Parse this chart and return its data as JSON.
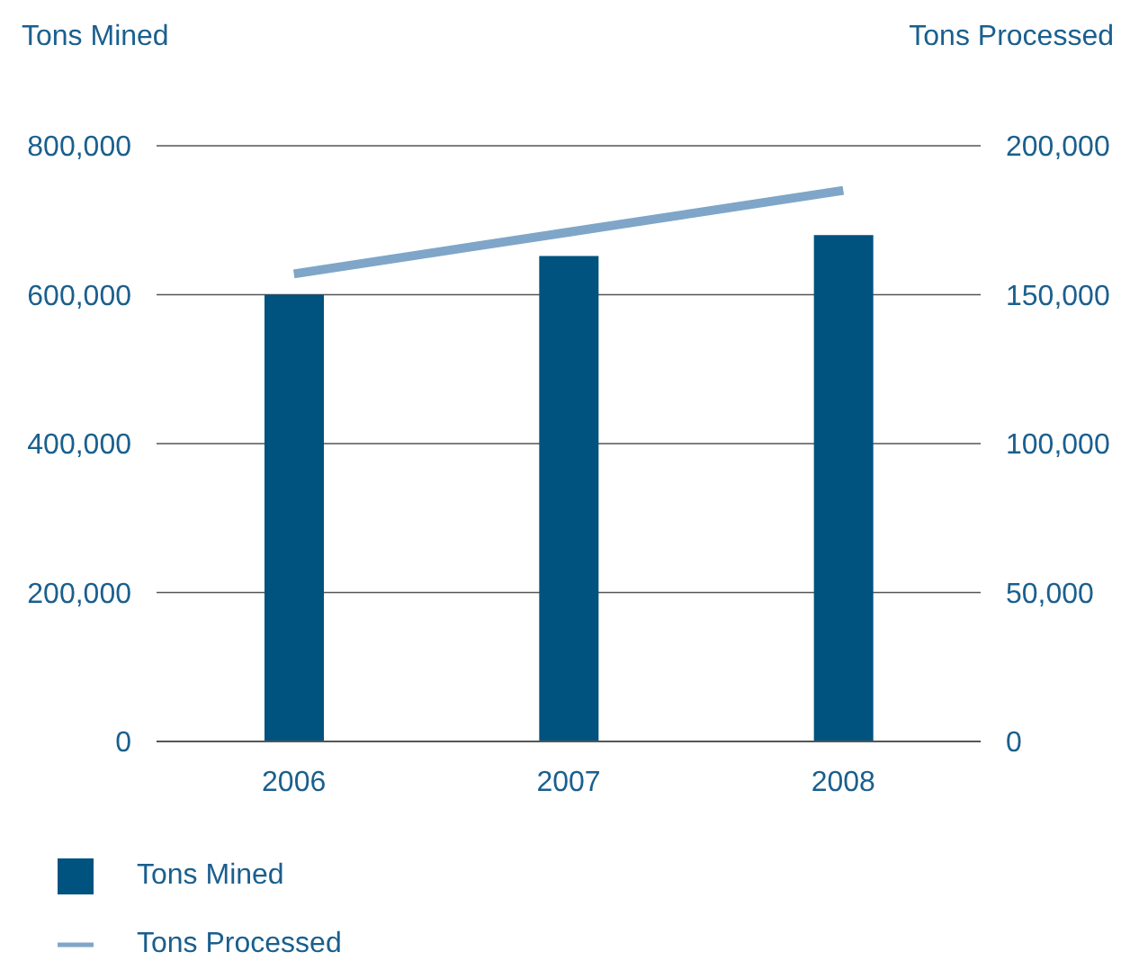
{
  "chart_data": {
    "type": "bar",
    "ylabel": "Tons Mined",
    "y2label": "Tons Processed",
    "categories": [
      "2006",
      "2007",
      "2008"
    ],
    "series": [
      {
        "name": "Tons Mined",
        "color": "#00527f",
        "values": [
          600000,
          652000,
          680000
        ]
      },
      {
        "name": "Tons Processed",
        "type": "line",
        "axis": "y2",
        "color": "#7fa6c8",
        "values": [
          157000,
          171000,
          185000
        ]
      }
    ],
    "ylim": [
      0,
      800000
    ],
    "yticks": [
      0,
      {
        "value": 200000,
        "label": "200,000"
      },
      {
        "value": 400000,
        "label": "400,000"
      },
      {
        "value": 600000,
        "label": "600,000"
      },
      {
        "value": 800000,
        "label": "800,000"
      }
    ],
    "y2lim": [
      0,
      200000
    ],
    "y2ticks": [
      0,
      {
        "value": 50000,
        "label": "50,000"
      },
      {
        "value": 100000,
        "label": "100,000"
      },
      {
        "value": 150000,
        "label": "150,000"
      },
      {
        "value": 200000,
        "label": "200,000"
      }
    ],
    "grid": "y",
    "legend": "bottom left",
    "marker": "none"
  }
}
